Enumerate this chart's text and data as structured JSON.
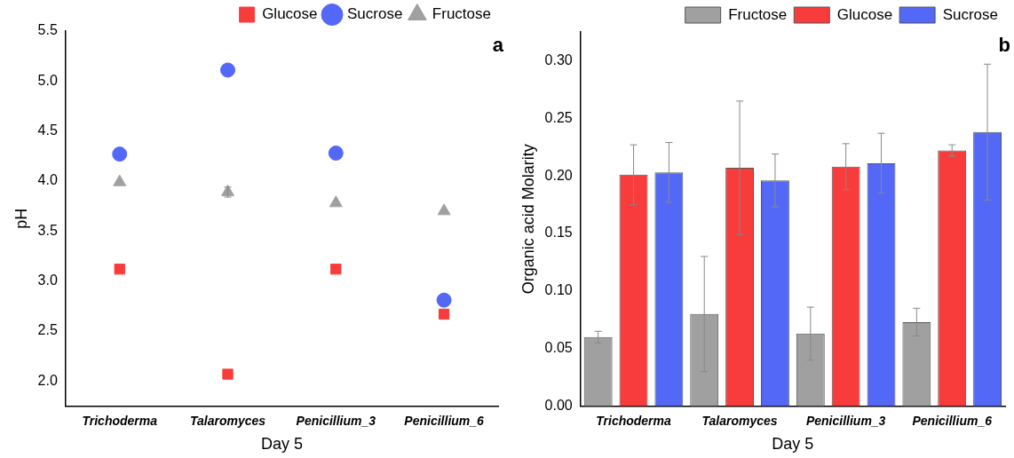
{
  "chart_data": [
    {
      "type": "scatter",
      "annotations": [
        "a"
      ],
      "xlabel": "Day 5",
      "ylabel": "pH",
      "categories": [
        "Trichoderma",
        "Talaromyces",
        "Penicillium_3",
        "Penicillium_6"
      ],
      "series": [
        {
          "name": "Glucose",
          "color": "#f83c3c",
          "marker": "square",
          "values": [
            3.12,
            2.07,
            3.12,
            2.67
          ]
        },
        {
          "name": "Sucrose",
          "color": "#5468f8",
          "marker": "circle",
          "values": [
            4.27,
            5.11,
            4.28,
            2.81
          ]
        },
        {
          "name": "Fructose",
          "color": "#a0a0a0",
          "marker": "triangle",
          "values": [
            3.99,
            3.89,
            3.78,
            3.7
          ],
          "errors": [
            null,
            0.05,
            null,
            null
          ]
        }
      ],
      "ylim": [
        1.75,
        5.5
      ],
      "yticks": [
        {
          "value": 2,
          "label": "2.0"
        },
        2.5,
        {
          "value": 3,
          "label": "3.0"
        },
        3.5,
        {
          "value": 4,
          "label": "4.0"
        },
        4.5,
        {
          "value": 5,
          "label": "5.0"
        },
        5.5
      ],
      "grid": false,
      "legend": "top right"
    },
    {
      "type": "bar",
      "annotations": [
        "b"
      ],
      "xlabel": "Day 5",
      "ylabel": "Organic acid Molarity",
      "categories": [
        "Trichoderma",
        "Talaromyces",
        "Penicillium_3",
        "Penicillium_6"
      ],
      "series": [
        {
          "name": "Fructose",
          "color": "#a0a0a0",
          "values": [
            0.06,
            0.08,
            0.063,
            0.073
          ],
          "errors": [
            0.005,
            0.05,
            0.023,
            0.012
          ]
        },
        {
          "name": "Glucose",
          "color": "#f83c3c",
          "values": [
            0.201,
            0.207,
            0.208,
            0.222
          ],
          "errors": [
            0.026,
            0.058,
            0.02,
            0.005
          ]
        },
        {
          "name": "Sucrose",
          "color": "#5468f8",
          "values": [
            0.203,
            0.196,
            0.211,
            0.238
          ],
          "errors": [
            0.026,
            0.023,
            0.026,
            0.059
          ]
        }
      ],
      "ylim": [
        0,
        0.325
      ],
      "yticks": [
        {
          "value": 0,
          "label": "0.00"
        },
        0.05,
        {
          "value": 0.1,
          "label": "0.10"
        },
        0.15,
        {
          "value": 0.2,
          "label": "0.20"
        },
        0.25,
        {
          "value": 0.3,
          "label": "0.30"
        }
      ],
      "grid": false,
      "legend": "top right"
    }
  ]
}
